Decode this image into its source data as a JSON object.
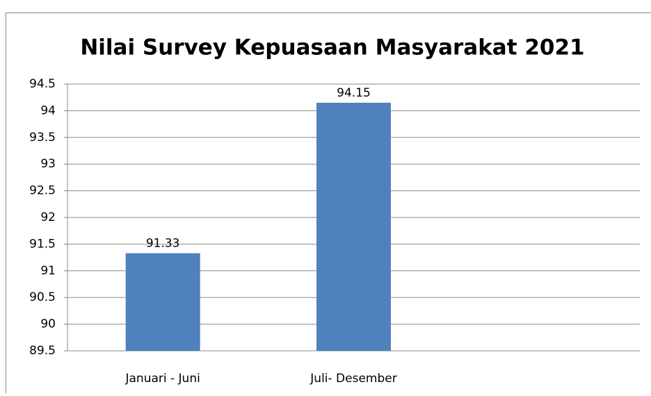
{
  "chart_data": {
    "type": "bar",
    "title": "Nilai Survey Kepuasaan Masyarakat 2021",
    "categories": [
      "Januari - Juni",
      "Juli- Desember",
      null
    ],
    "values": [
      91.33,
      94.15,
      null
    ],
    "color": "#4f81bd",
    "ylim": [
      89.5,
      94.5
    ],
    "yticks": [
      89.5,
      90,
      90.5,
      91,
      91.5,
      92,
      92.5,
      93,
      93.5,
      94,
      94.5
    ],
    "grid": true
  }
}
